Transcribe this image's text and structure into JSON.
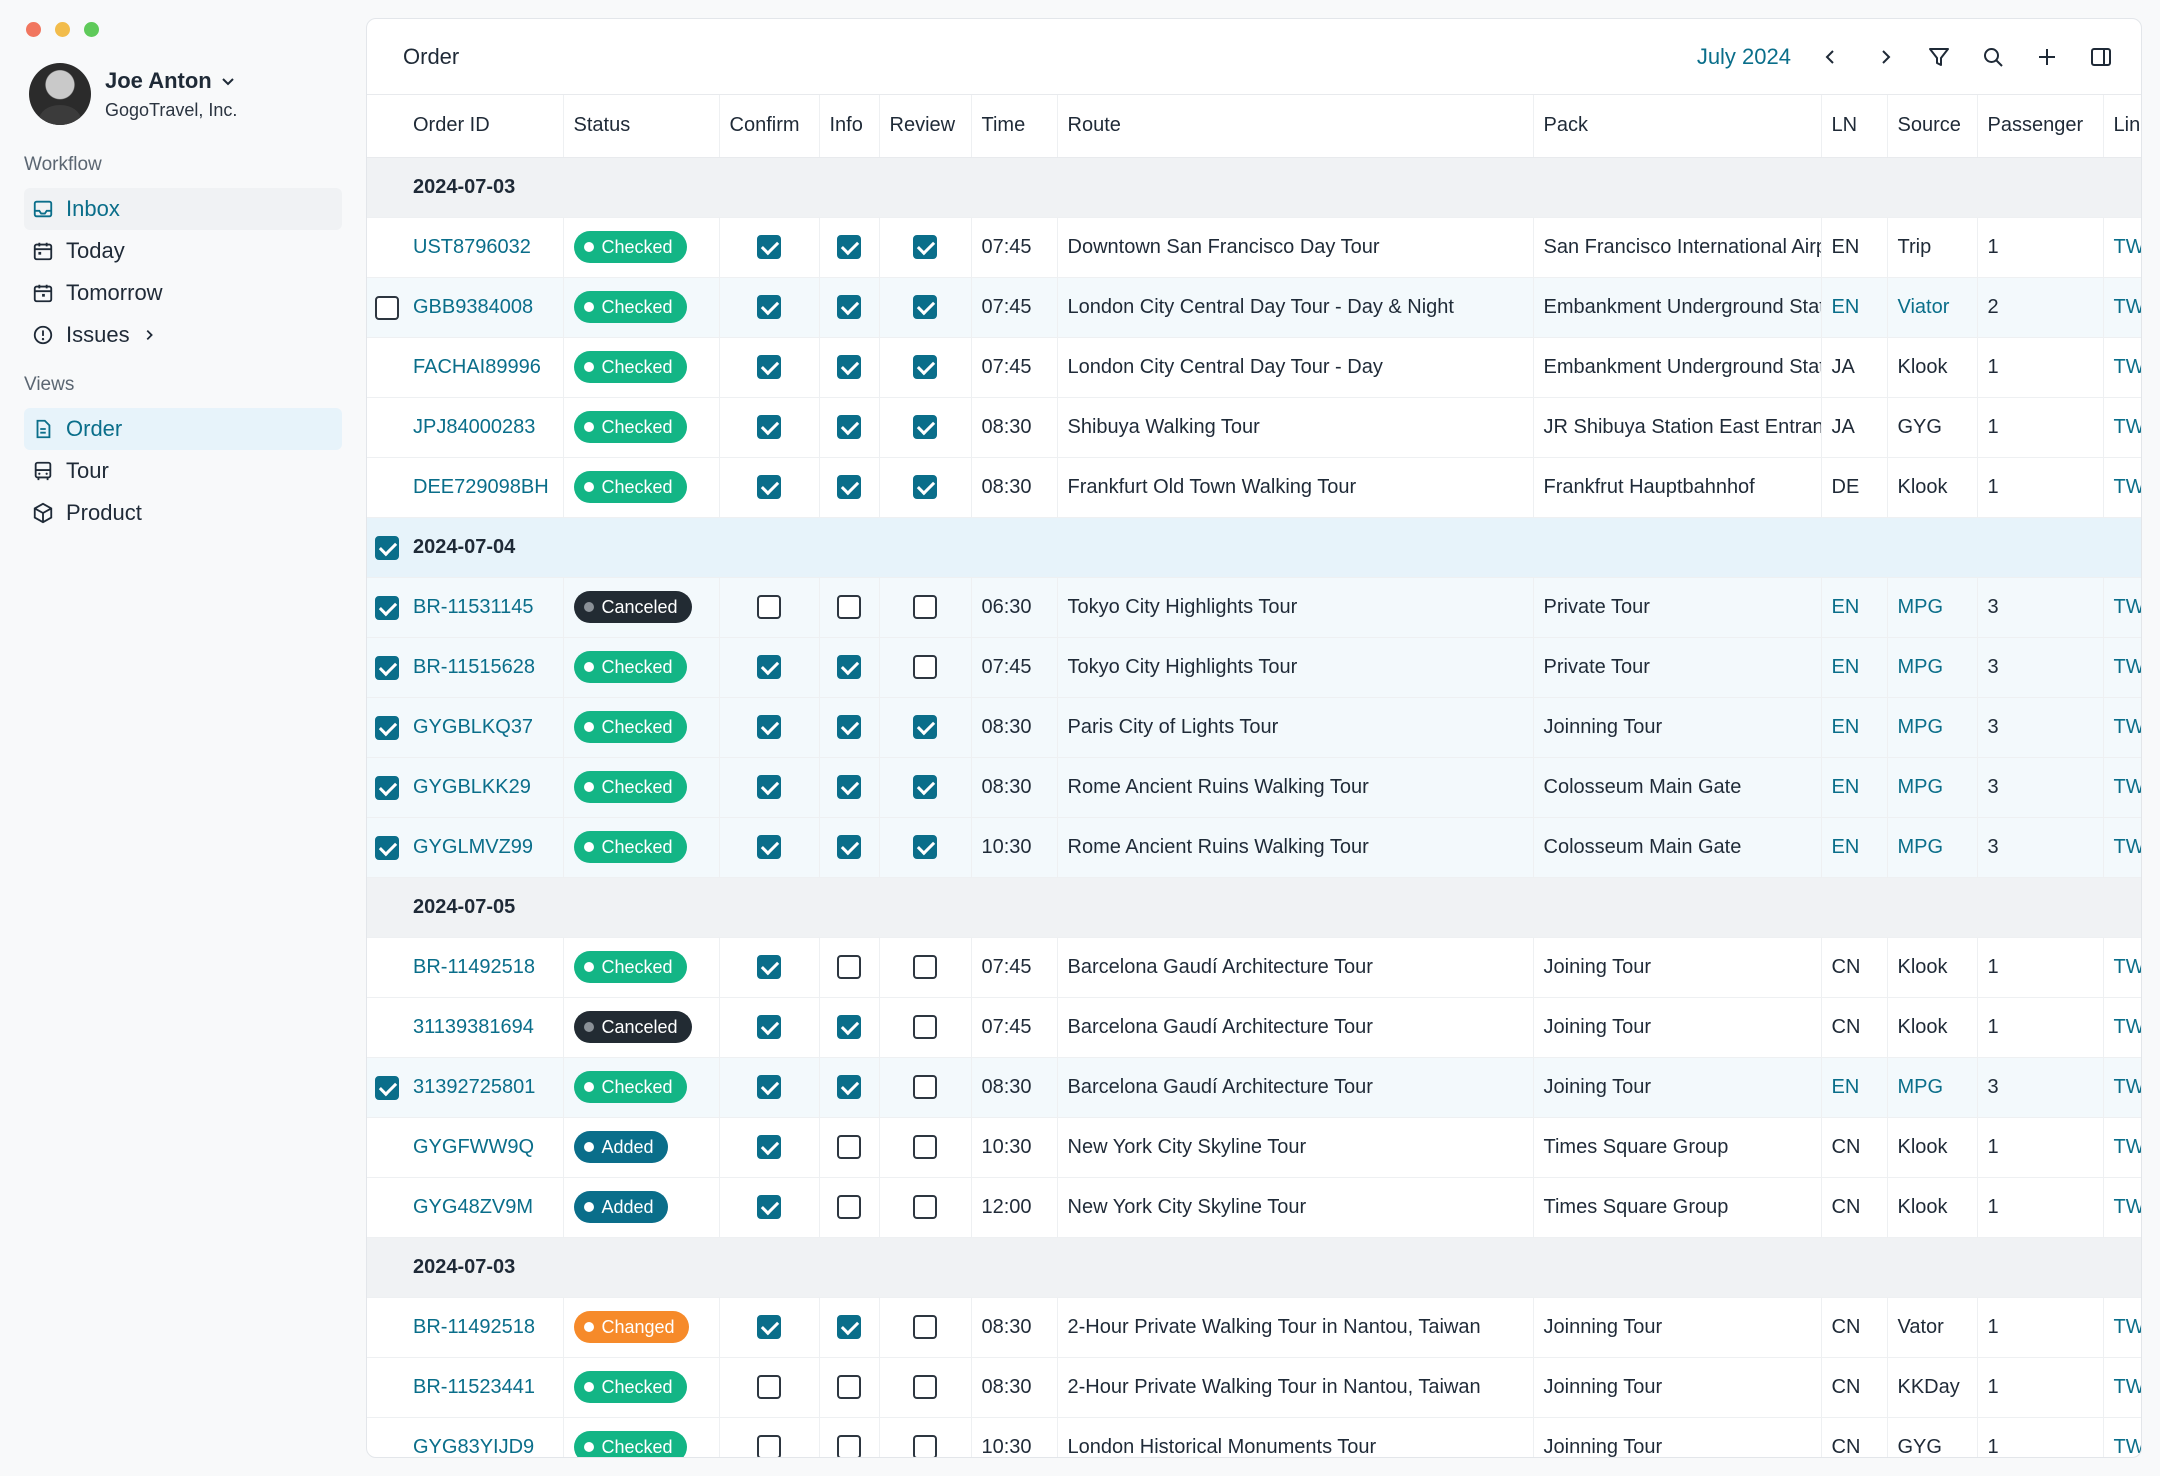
{
  "window": {
    "title": "Order"
  },
  "profile": {
    "name": "Joe Anton",
    "company": "GogoTravel, Inc."
  },
  "sidebar": {
    "workflow_label": "Workflow",
    "workflow": [
      {
        "label": "Inbox",
        "icon": "inbox-icon"
      },
      {
        "label": "Today",
        "icon": "calendar-icon"
      },
      {
        "label": "Tomorrow",
        "icon": "calendar-icon"
      },
      {
        "label": "Issues",
        "icon": "alert-circle-icon"
      }
    ],
    "views_label": "Views",
    "views": [
      {
        "label": "Order",
        "icon": "document-icon"
      },
      {
        "label": "Tour",
        "icon": "bus-icon"
      },
      {
        "label": "Product",
        "icon": "package-icon"
      }
    ]
  },
  "header": {
    "title": "Order",
    "month": "July 2024"
  },
  "columns": [
    "Order ID",
    "Status",
    "Confirm",
    "Info",
    "Review",
    "Time",
    "Route",
    "Pack",
    "LN",
    "Source",
    "Passenger",
    "Link"
  ],
  "colors": {
    "accent": "#0a6e8a",
    "checked": "#13b585",
    "canceled": "#222b33",
    "added": "#0a6e8a",
    "changed": "#f68a2a"
  },
  "groups": [
    {
      "date": "2024-07-03",
      "selected": false,
      "rows": [
        {
          "id": "UST8796032",
          "status": "Checked",
          "confirm": true,
          "info": true,
          "review": true,
          "time": "07:45",
          "route": "Downtown San Francisco Day Tour",
          "pack": "San Francisco International Airport",
          "ln": "EN",
          "source": "Trip",
          "passenger": "1",
          "link": "TW",
          "sel": false,
          "showchk": false,
          "hl": false
        },
        {
          "id": "GBB9384008",
          "status": "Checked",
          "confirm": true,
          "info": true,
          "review": true,
          "time": "07:45",
          "route": "London City Central Day Tour - Day & Night",
          "pack": "Embankment Underground Station",
          "ln": "EN",
          "source": "Viator",
          "passenger": "2",
          "link": "TW",
          "sel": false,
          "showchk": true,
          "hl": true
        },
        {
          "id": "FACHAI89996",
          "status": "Checked",
          "confirm": true,
          "info": true,
          "review": true,
          "time": "07:45",
          "route": "London City Central Day Tour - Day",
          "pack": "Embankment Underground Station",
          "ln": "JA",
          "source": "Klook",
          "passenger": "1",
          "link": "TW",
          "sel": false,
          "showchk": false,
          "hl": false
        },
        {
          "id": "JPJ84000283",
          "status": "Checked",
          "confirm": true,
          "info": true,
          "review": true,
          "time": "08:30",
          "route": "Shibuya Walking Tour",
          "pack": "JR Shibuya Station East Entrance",
          "ln": "JA",
          "source": "GYG",
          "passenger": "1",
          "link": "TW",
          "sel": false,
          "showchk": false,
          "hl": false
        },
        {
          "id": "DEE729098BH",
          "status": "Checked",
          "confirm": true,
          "info": true,
          "review": true,
          "time": "08:30",
          "route": "Frankfurt Old Town Walking Tour",
          "pack": "Frankfrut Hauptbahnhof",
          "ln": "DE",
          "source": "Klook",
          "passenger": "1",
          "link": "TW",
          "sel": false,
          "showchk": false,
          "hl": false
        }
      ]
    },
    {
      "date": "2024-07-04",
      "selected": true,
      "rows": [
        {
          "id": "BR-11531145",
          "status": "Canceled",
          "confirm": false,
          "info": false,
          "review": false,
          "time": "06:30",
          "route": "Tokyo City Highlights Tour",
          "pack": "Private Tour",
          "ln": "EN",
          "source": "MPG",
          "passenger": "3",
          "link": "TW",
          "sel": true,
          "showchk": true,
          "hl": true
        },
        {
          "id": "BR-11515628",
          "status": "Checked",
          "confirm": true,
          "info": true,
          "review": false,
          "time": "07:45",
          "route": "Tokyo City Highlights Tour",
          "pack": "Private Tour",
          "ln": "EN",
          "source": "MPG",
          "passenger": "3",
          "link": "TW",
          "sel": true,
          "showchk": true,
          "hl": true
        },
        {
          "id": "GYGBLKQ37",
          "status": "Checked",
          "confirm": true,
          "info": true,
          "review": true,
          "time": "08:30",
          "route": "Paris City of Lights Tour",
          "pack": "Joinning Tour",
          "ln": "EN",
          "source": "MPG",
          "passenger": "3",
          "link": "TW",
          "sel": true,
          "showchk": true,
          "hl": true
        },
        {
          "id": "GYGBLKK29",
          "status": "Checked",
          "confirm": true,
          "info": true,
          "review": true,
          "time": "08:30",
          "route": "Rome Ancient Ruins Walking Tour",
          "pack": "Colosseum Main Gate",
          "ln": "EN",
          "source": "MPG",
          "passenger": "3",
          "link": "TW",
          "sel": true,
          "showchk": true,
          "hl": true
        },
        {
          "id": "GYGLMVZ99",
          "status": "Checked",
          "confirm": true,
          "info": true,
          "review": true,
          "time": "10:30",
          "route": "Rome Ancient Ruins Walking Tour",
          "pack": "Colosseum Main Gate",
          "ln": "EN",
          "source": "MPG",
          "passenger": "3",
          "link": "TW",
          "sel": true,
          "showchk": true,
          "hl": true
        }
      ]
    },
    {
      "date": "2024-07-05",
      "selected": false,
      "rows": [
        {
          "id": "BR-11492518",
          "status": "Checked",
          "confirm": true,
          "info": false,
          "review": false,
          "time": "07:45",
          "route": "Barcelona Gaudí Architecture Tour",
          "pack": "Joining Tour",
          "ln": "CN",
          "source": "Klook",
          "passenger": "1",
          "link": "TW",
          "sel": false,
          "showchk": false,
          "hl": false
        },
        {
          "id": "31139381694",
          "status": "Canceled",
          "confirm": true,
          "info": true,
          "review": false,
          "time": "07:45",
          "route": "Barcelona Gaudí Architecture Tour",
          "pack": "Joining Tour",
          "ln": "CN",
          "source": "Klook",
          "passenger": "1",
          "link": "TW",
          "sel": false,
          "showchk": false,
          "hl": false
        },
        {
          "id": "31392725801",
          "status": "Checked",
          "confirm": true,
          "info": true,
          "review": false,
          "time": "08:30",
          "route": "Barcelona Gaudí Architecture Tour",
          "pack": "Joining Tour",
          "ln": "EN",
          "source": "MPG",
          "passenger": "3",
          "link": "TW",
          "sel": true,
          "showchk": true,
          "hl": true
        },
        {
          "id": "GYGFWW9Q",
          "status": "Added",
          "confirm": true,
          "info": false,
          "review": false,
          "time": "10:30",
          "route": "New York City Skyline Tour",
          "pack": "Times Square Group",
          "ln": "CN",
          "source": "Klook",
          "passenger": "1",
          "link": "TW",
          "sel": false,
          "showchk": false,
          "hl": false
        },
        {
          "id": "GYG48ZV9M",
          "status": "Added",
          "confirm": true,
          "info": false,
          "review": false,
          "time": "12:00",
          "route": "New York City Skyline Tour",
          "pack": "Times Square Group",
          "ln": "CN",
          "source": "Klook",
          "passenger": "1",
          "link": "TW",
          "sel": false,
          "showchk": false,
          "hl": false
        }
      ]
    },
    {
      "date": "2024-07-03",
      "selected": false,
      "rows": [
        {
          "id": "BR-11492518",
          "status": "Changed",
          "confirm": true,
          "info": true,
          "review": false,
          "time": "08:30",
          "route": "2-Hour Private Walking Tour in Nantou, Taiwan",
          "pack": "Joinning Tour",
          "ln": "CN",
          "source": "Vator",
          "passenger": "1",
          "link": "TW",
          "sel": false,
          "showchk": false,
          "hl": false
        },
        {
          "id": "BR-11523441",
          "status": "Checked",
          "confirm": false,
          "info": false,
          "review": false,
          "time": "08:30",
          "route": "2-Hour Private Walking Tour in Nantou, Taiwan",
          "pack": "Joinning Tour",
          "ln": "CN",
          "source": "KKDay",
          "passenger": "1",
          "link": "TW",
          "sel": false,
          "showchk": false,
          "hl": false
        },
        {
          "id": "GYG83YIJD9",
          "status": "Checked",
          "confirm": false,
          "info": false,
          "review": false,
          "time": "10:30",
          "route": "London Historical Monuments Tour",
          "pack": "Joinning Tour",
          "ln": "CN",
          "source": "GYG",
          "passenger": "1",
          "link": "TW",
          "sel": false,
          "showchk": false,
          "hl": false
        }
      ]
    }
  ]
}
